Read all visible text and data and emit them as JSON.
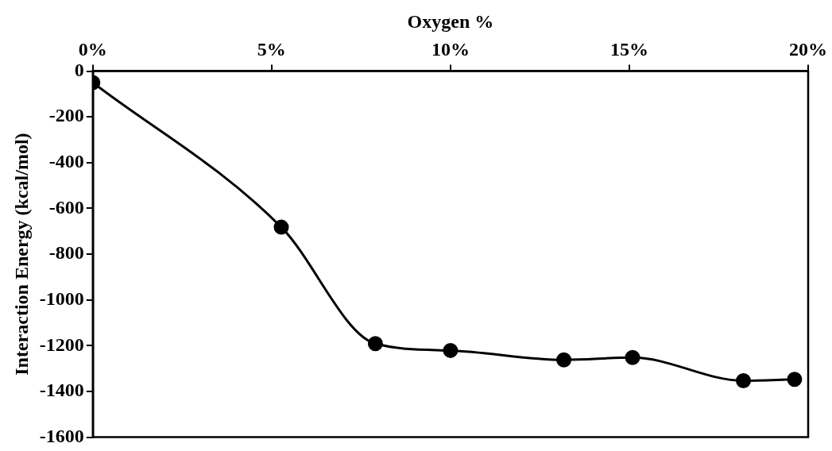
{
  "chart_data": {
    "type": "line",
    "xlabel": "Oxygen %",
    "ylabel": "Interaction Energy (kcal/mol)",
    "x": [
      0,
      5.27,
      7.9,
      10,
      13.17,
      15.09,
      18.19,
      19.62
    ],
    "series": [
      {
        "color": "#000000",
        "values": [
          -50,
          -682,
          -1191,
          -1221,
          -1262,
          -1252,
          -1353,
          -1347
        ]
      }
    ],
    "xlim": [
      0,
      20
    ],
    "xticks": [
      {
        "value": 0,
        "label": "0%"
      },
      {
        "value": 5,
        "label": "5%"
      },
      {
        "value": 10,
        "label": "10%"
      },
      {
        "value": 15,
        "label": "15%"
      },
      {
        "value": 20,
        "label": "20%"
      }
    ],
    "ylim": [
      -1600,
      0
    ],
    "yticks": [
      0,
      -200,
      -400,
      -600,
      -800,
      -1000,
      -1200,
      -1400,
      -1600
    ],
    "marker": "circle",
    "line_style": "solid",
    "grid": false,
    "legend": false
  }
}
